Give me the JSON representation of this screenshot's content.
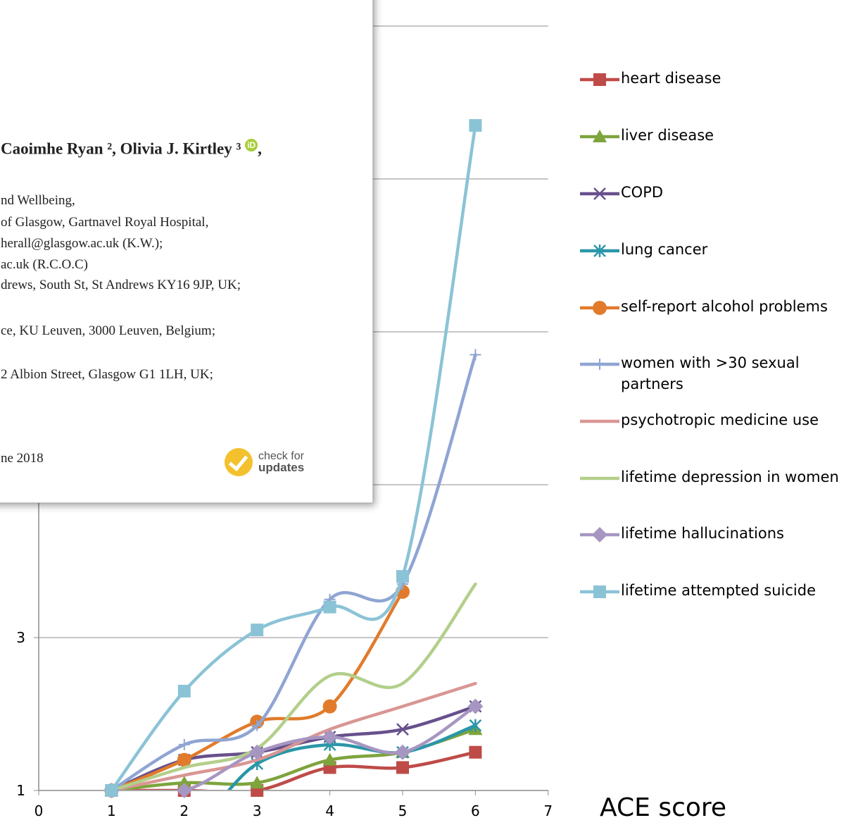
{
  "chart_data": {
    "type": "line",
    "xlabel": "ACE score",
    "ylabel": "",
    "xlim": [
      0,
      7
    ],
    "ylim": [
      1,
      11
    ],
    "x_ticks": [
      "0",
      "1",
      "2",
      "3",
      "4",
      "5",
      "6",
      "7"
    ],
    "y_ticks_visible": [
      "1",
      "3"
    ],
    "grid": "horizontal",
    "legend_position": "right",
    "x": [
      1,
      2,
      3,
      4,
      5,
      6
    ],
    "series": [
      {
        "name": "heart disease",
        "color": "#BE4B48",
        "marker": "square",
        "values": [
          1,
          1.0,
          1.0,
          1.3,
          1.3,
          1.5
        ]
      },
      {
        "name": "liver disease",
        "color": "#7EA43D",
        "marker": "triangle",
        "values": [
          1,
          1.1,
          1.1,
          1.4,
          1.5,
          1.8
        ]
      },
      {
        "name": "COPD",
        "color": "#67508C",
        "marker": "x",
        "values": [
          1,
          1.4,
          1.5,
          1.7,
          1.8,
          2.1
        ]
      },
      {
        "name": "lung cancer",
        "color": "#2A96A8",
        "marker": "asterisk",
        "values": [
          1,
          0.5,
          1.35,
          1.6,
          1.5,
          1.85
        ]
      },
      {
        "name": "self-report alcohol problems",
        "color": "#E17B2B",
        "marker": "circle",
        "values": [
          1,
          1.4,
          1.9,
          2.1,
          3.6,
          null
        ]
      },
      {
        "name": "women with >30 sexual partners",
        "color": "#8FA5D3",
        "marker": "plus",
        "values": [
          1,
          1.6,
          1.85,
          3.5,
          3.7,
          6.7
        ]
      },
      {
        "name": "psychotropic medicine use",
        "color": "#D99694",
        "marker": "none",
        "values": [
          1,
          1.2,
          1.4,
          1.8,
          2.1,
          2.4
        ]
      },
      {
        "name": "lifetime depression in women",
        "color": "#B3CF8B",
        "marker": "none",
        "values": [
          1,
          1.3,
          1.55,
          2.5,
          2.4,
          3.7
        ]
      },
      {
        "name": "lifetime hallucinations",
        "color": "#A796C1",
        "marker": "diamond",
        "values": [
          1,
          1.0,
          1.5,
          1.7,
          1.5,
          2.1
        ]
      },
      {
        "name": "lifetime attempted suicide",
        "color": "#8BC3D6",
        "marker": "square",
        "values": [
          1,
          2.3,
          3.1,
          3.4,
          3.8,
          9.7
        ]
      }
    ]
  },
  "overlay_paper": {
    "authors": "Caoimhe Ryan ², Olivia J. Kirtley ³",
    "lines": [
      "nd Wellbeing,",
      "of Glasgow, Gartnavel Royal Hospital,",
      "herall@glasgow.ac.uk (K.W.);",
      "ac.uk (R.C.O.C)",
      "drews, South St, St Andrews KY16 9JP, UK;",
      "ce, KU Leuven, 3000 Leuven, Belgium;",
      "2 Albion Street, Glasgow G1 1LH, UK;",
      "ne 2018"
    ],
    "check_line1": "check for",
    "check_line2": "updates"
  }
}
